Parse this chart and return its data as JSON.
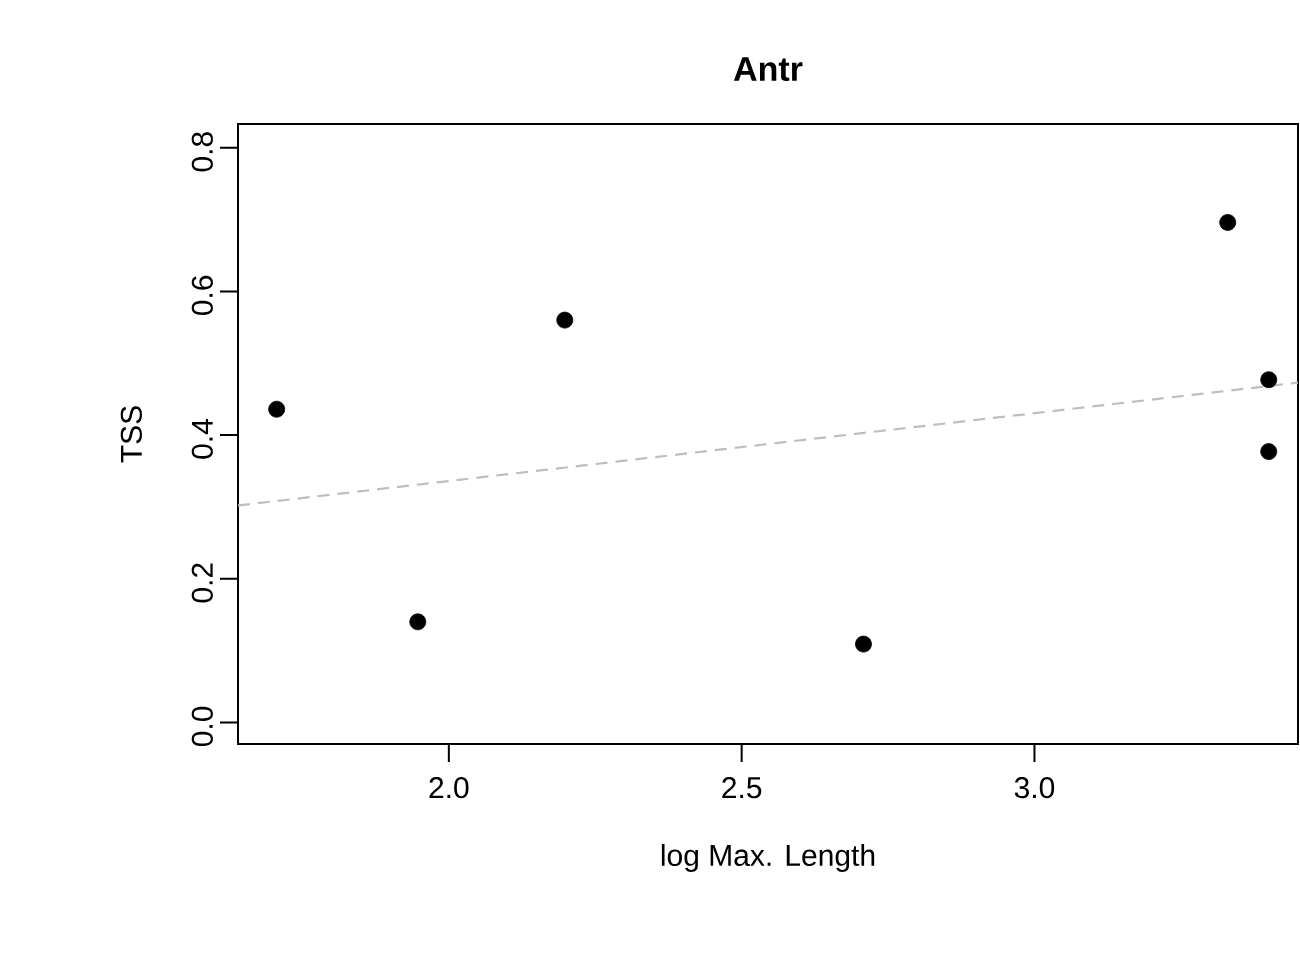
{
  "chart_data": {
    "type": "scatter",
    "title": "Antr",
    "xlabel": "log Max. Length",
    "ylabel": "TSS",
    "xlim": [
      1.64,
      3.45
    ],
    "ylim": [
      -0.03,
      0.833
    ],
    "xticks": [
      {
        "value": 2.0,
        "label": "2.0"
      },
      2.5,
      {
        "value": 3.0,
        "label": "3.0"
      }
    ],
    "yticks": [
      {
        "value": 0.0,
        "label": "0.0"
      },
      0.2,
      0.4,
      0.6,
      0.8
    ],
    "grid": false,
    "marker": "circle",
    "series": [
      {
        "color": "#000000",
        "x": [
          1.706,
          1.947,
          2.198,
          2.708,
          3.33,
          3.4,
          3.4
        ],
        "values": [
          0.436,
          0.14,
          0.56,
          0.109,
          0.696,
          0.477,
          0.377
        ]
      },
      {
        "type": "line",
        "color": "#bebebe",
        "line_style": "dashed",
        "marker": "none",
        "x": [
          1.64,
          3.45
        ],
        "values": [
          0.302,
          0.473
        ]
      }
    ]
  }
}
